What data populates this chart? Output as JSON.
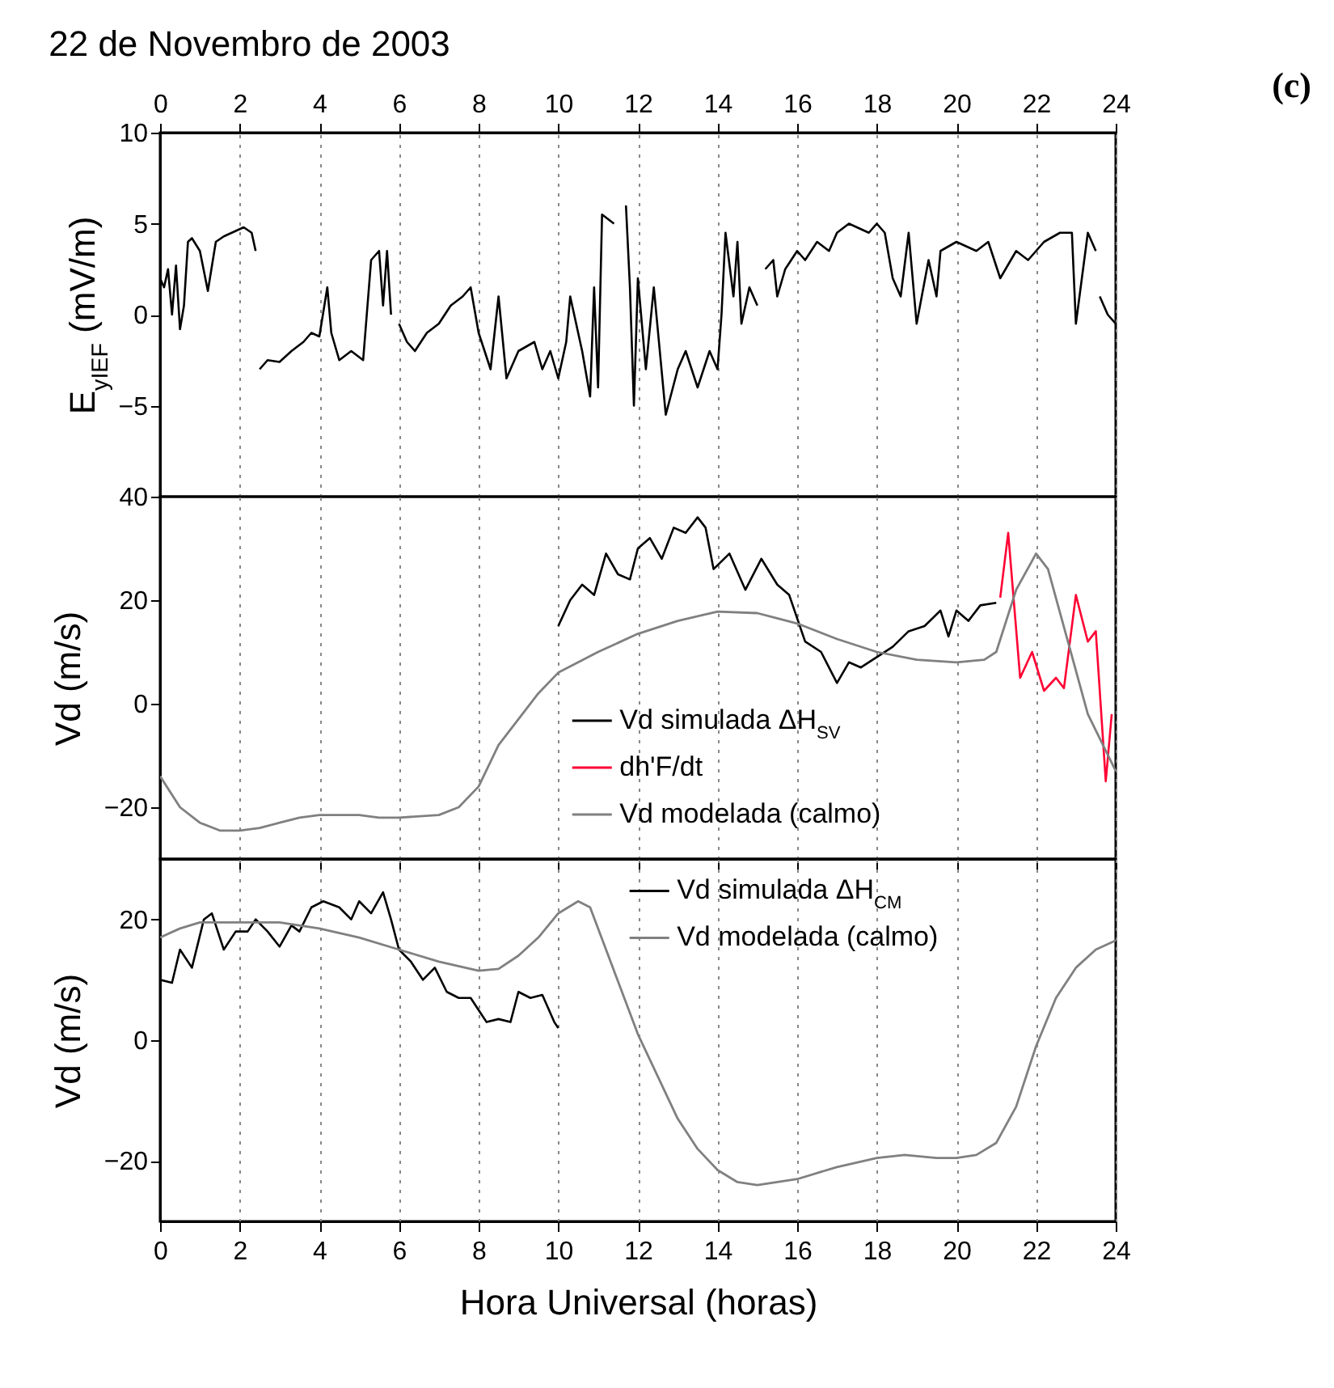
{
  "chart_data": [
    {
      "type": "line",
      "title": "22 de Novembro de 2003",
      "annotations": [
        "(c)"
      ],
      "ylabel": "E$_{yIEF}$ (mV/m)",
      "xlim": [
        0,
        24
      ],
      "xticks": [
        0,
        2,
        4,
        6,
        8,
        10,
        12,
        14,
        16,
        18,
        20,
        22,
        24
      ],
      "ylim": [
        -10,
        10
      ],
      "yticks": [
        -5,
        0,
        5,
        10
      ],
      "grid": "x",
      "series": [
        {
          "color": "#000000",
          "x": [
            0,
            0.1,
            0.2,
            0.3,
            0.4,
            0.5,
            0.6,
            0.7,
            0.8,
            1.0,
            1.2,
            1.4,
            1.6,
            1.8,
            2.1,
            2.3,
            2.4,
            2.45,
            2.5,
            2.7,
            3.0,
            3.3,
            3.6,
            3.8,
            4.0,
            4.2,
            4.3,
            4.5,
            4.8,
            5.1,
            5.3,
            5.5,
            5.6,
            5.7,
            5.8,
            5.9,
            6.0,
            6.2,
            6.4,
            6.7,
            7.0,
            7.3,
            7.6,
            7.8,
            8.0,
            8.3,
            8.5,
            8.7,
            9.0,
            9.4,
            9.6,
            9.8,
            10.0,
            10.2,
            10.3,
            10.6,
            10.8,
            10.9,
            11.0,
            11.1,
            11.4,
            11.5,
            11.7,
            11.8,
            11.9,
            12.0,
            12.2,
            12.4,
            12.7,
            13.0,
            13.2,
            13.5,
            13.8,
            14.0,
            14.1,
            14.2,
            14.4,
            14.5,
            14.6,
            14.8,
            15.0,
            15.1,
            15.2,
            15.4,
            15.5,
            15.7,
            16.0,
            16.2,
            16.5,
            16.8,
            17.0,
            17.3,
            17.8,
            18.0,
            18.2,
            18.4,
            18.6,
            18.8,
            19.0,
            19.3,
            19.5,
            19.6,
            20.0,
            20.5,
            20.8,
            21.1,
            21.5,
            21.8,
            22.2,
            22.6,
            22.9,
            23.0,
            23.3,
            23.5,
            23.55,
            23.6,
            23.8,
            24.0
          ],
          "values": [
            2,
            1.5,
            2.5,
            0,
            2.7,
            -0.8,
            0.5,
            4,
            4.2,
            3.5,
            1.3,
            4,
            4.3,
            4.5,
            4.8,
            4.5,
            3.5,
            null,
            -3,
            -2.5,
            -2.6,
            -2,
            -1.5,
            -1,
            -1.2,
            1.5,
            -1,
            -2.5,
            -2,
            -2.5,
            3,
            3.5,
            0.5,
            3.5,
            0,
            null,
            -0.5,
            -1.5,
            -2,
            -1,
            -0.5,
            0.5,
            1,
            1.5,
            -1,
            -3,
            1,
            -3.5,
            -2,
            -1.5,
            -3,
            -2,
            -3.5,
            -1.5,
            1,
            -2,
            -4.5,
            1.5,
            -4,
            5.5,
            5,
            null,
            6,
            1.5,
            -5,
            2,
            -3,
            1.5,
            -5.5,
            -3,
            -2,
            -4,
            -2,
            -3,
            0,
            4.5,
            1,
            4,
            -0.5,
            1.5,
            0.5,
            null,
            2.5,
            3,
            1,
            2.5,
            3.5,
            3,
            4,
            3.5,
            4.5,
            5,
            4.5,
            5,
            4.5,
            2,
            1,
            4.5,
            -0.5,
            3,
            1,
            3.5,
            4,
            3.5,
            4,
            2,
            3.5,
            3,
            4,
            4.5,
            4.5,
            -0.5,
            4.5,
            3.5,
            null,
            1,
            0,
            -0.5
          ]
        }
      ]
    },
    {
      "type": "line",
      "ylabel": "Vd (m/s)",
      "xlim": [
        0,
        24
      ],
      "xticks": [
        0,
        2,
        4,
        6,
        8,
        10,
        12,
        14,
        16,
        18,
        20,
        22,
        24
      ],
      "ylim": [
        -30,
        40
      ],
      "yticks": [
        -20,
        0,
        20,
        40
      ],
      "grid": "x",
      "tick_labels": "y",
      "legend": "bottom",
      "series": [
        {
          "name": "Vd simulada ΔH$_{SV}$",
          "color": "#000000",
          "x": [
            10,
            10.3,
            10.6,
            10.9,
            11.2,
            11.5,
            11.8,
            12,
            12.3,
            12.6,
            12.9,
            13.2,
            13.5,
            13.7,
            13.9,
            14.3,
            14.7,
            15.1,
            15.5,
            15.8,
            16.2,
            16.6,
            17,
            17.3,
            17.6,
            18,
            18.4,
            18.8,
            19.2,
            19.6,
            19.8,
            20,
            20.3,
            20.6,
            21
          ],
          "values": [
            15,
            20,
            23,
            21,
            29,
            25,
            24,
            30,
            32,
            28,
            34,
            33,
            36,
            34,
            26,
            29,
            22,
            28,
            23,
            21,
            12,
            10,
            4,
            8,
            7,
            9,
            11,
            14,
            15,
            18,
            13,
            18,
            16,
            19,
            19.5
          ]
        },
        {
          "name": "dh'F/dt",
          "color": "#ff0033",
          "x": [
            21.1,
            21.3,
            21.6,
            21.9,
            22.2,
            22.5,
            22.7,
            23.0,
            23.3,
            23.5,
            23.75,
            23.9
          ],
          "values": [
            20.5,
            33,
            5,
            10,
            2.5,
            5,
            3,
            21,
            12,
            14,
            -15,
            -2
          ]
        },
        {
          "name": "Vd modelada (calmo)",
          "color": "#808080",
          "x": [
            0,
            0.5,
            1,
            1.5,
            2,
            2.5,
            3,
            3.5,
            4,
            4.5,
            5,
            5.5,
            6,
            7,
            7.5,
            8,
            8.5,
            9,
            9.5,
            10,
            11,
            12,
            13,
            14,
            15,
            16,
            17,
            18,
            19,
            20,
            20.7,
            21,
            21.5,
            22,
            22.3,
            22.8,
            23.3,
            24
          ],
          "values": [
            -14,
            -20,
            -23,
            -24.5,
            -24.5,
            -24,
            -23,
            -22,
            -21.5,
            -21.5,
            -21.5,
            -22,
            -22,
            -21.5,
            -20,
            -16,
            -8,
            -3,
            2,
            6,
            10,
            13.5,
            16,
            17.8,
            17.5,
            15.5,
            12.5,
            10,
            8.5,
            8,
            8.5,
            10,
            22,
            29,
            26,
            12,
            -2,
            -13
          ]
        }
      ]
    },
    {
      "type": "line",
      "ylabel": "Vd (m/s)",
      "xlabel": "Hora Universal (horas)",
      "xlim": [
        0,
        24
      ],
      "xticks": [
        0,
        2,
        4,
        6,
        8,
        10,
        12,
        14,
        16,
        18,
        20,
        22,
        24
      ],
      "ylim": [
        -30,
        30
      ],
      "yticks": [
        -20,
        0,
        20
      ],
      "grid": "x",
      "legend": "top right",
      "series": [
        {
          "name": "Vd simulada ΔH$_{CM}$",
          "color": "#000000",
          "x": [
            0,
            0.3,
            0.5,
            0.8,
            1.1,
            1.3,
            1.6,
            1.9,
            2.2,
            2.4,
            2.7,
            3,
            3.3,
            3.5,
            3.8,
            4.1,
            4.5,
            4.8,
            5,
            5.3,
            5.6,
            5.8,
            6,
            6.3,
            6.6,
            6.9,
            7.2,
            7.5,
            7.8,
            8,
            8.2,
            8.5,
            8.8,
            9,
            9.3,
            9.6,
            9.9,
            10
          ],
          "values": [
            10,
            9.5,
            15,
            12,
            20,
            21,
            15,
            18,
            18,
            20,
            18,
            15.5,
            19,
            18,
            22,
            23,
            22,
            20,
            23,
            21,
            24.5,
            20,
            15,
            13,
            10,
            12,
            8,
            7,
            7,
            5,
            3,
            3.5,
            3,
            8,
            7,
            7.5,
            3,
            2
          ]
        },
        {
          "name": "Vd modelada (calmo)",
          "color": "#808080",
          "x": [
            0,
            0.5,
            1,
            2,
            3,
            4,
            5,
            6,
            7,
            8,
            8.5,
            9,
            9.5,
            10,
            10.5,
            10.8,
            11.2,
            11.6,
            12,
            12.5,
            13,
            13.5,
            14,
            14.5,
            15,
            16,
            17,
            18,
            18.7,
            19.5,
            20,
            20.5,
            21,
            21.5,
            22,
            22.5,
            23,
            23.5,
            24
          ],
          "values": [
            17,
            18.5,
            19.5,
            19.5,
            19.5,
            18.5,
            17,
            15,
            13,
            11.5,
            11.8,
            14,
            17,
            21,
            23,
            22,
            15,
            8,
            1,
            -6,
            -13,
            -18,
            -21.5,
            -23.5,
            -24,
            -23,
            -21,
            -19.5,
            -19,
            -19.5,
            -19.5,
            -19,
            -17,
            -11,
            -1,
            7,
            12,
            15,
            16.5
          ]
        }
      ]
    }
  ]
}
